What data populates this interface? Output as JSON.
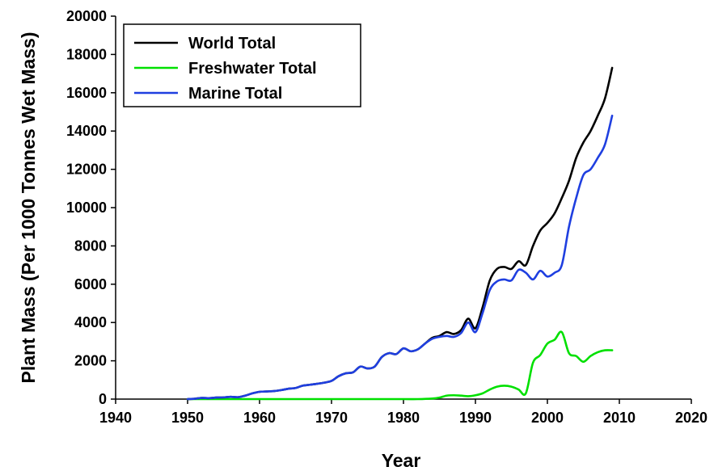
{
  "chart_data": {
    "type": "line",
    "title": "",
    "xlabel": "Year",
    "ylabel": "Plant Mass (Per 1000 Tonnes Wet Mass)",
    "xlim": [
      1940,
      2020
    ],
    "ylim": [
      0,
      20000
    ],
    "xticks": [
      1940,
      1950,
      1960,
      1970,
      1980,
      1990,
      2000,
      2010,
      2020
    ],
    "yticks": [
      0,
      2000,
      4000,
      6000,
      8000,
      10000,
      12000,
      14000,
      16000,
      18000,
      20000
    ],
    "grid": false,
    "legend_position": "top-left",
    "series": [
      {
        "name": "World Total",
        "color": "#000000",
        "x": [
          1950,
          1951,
          1952,
          1953,
          1954,
          1955,
          1956,
          1957,
          1958,
          1959,
          1960,
          1961,
          1962,
          1963,
          1964,
          1965,
          1966,
          1967,
          1968,
          1969,
          1970,
          1971,
          1972,
          1973,
          1974,
          1975,
          1976,
          1977,
          1978,
          1979,
          1980,
          1981,
          1982,
          1983,
          1984,
          1985,
          1986,
          1987,
          1988,
          1989,
          1990,
          1991,
          1992,
          1993,
          1994,
          1995,
          1996,
          1997,
          1998,
          1999,
          2000,
          2001,
          2002,
          2003,
          2004,
          2005,
          2006,
          2007,
          2008,
          2009
        ],
        "y": [
          0,
          20,
          60,
          50,
          80,
          90,
          120,
          100,
          180,
          300,
          380,
          400,
          420,
          470,
          540,
          580,
          700,
          750,
          800,
          860,
          950,
          1200,
          1350,
          1400,
          1700,
          1600,
          1700,
          2200,
          2400,
          2350,
          2650,
          2500,
          2600,
          2900,
          3200,
          3300,
          3500,
          3400,
          3600,
          4200,
          3700,
          4800,
          6200,
          6800,
          6900,
          6800,
          7200,
          7000,
          8000,
          8800,
          9200,
          9700,
          10500,
          11400,
          12600,
          13400,
          14000,
          14800,
          15700,
          17300
        ]
      },
      {
        "name": "Freshwater Total",
        "color": "#00e000",
        "x": [
          1950,
          1955,
          1960,
          1965,
          1970,
          1975,
          1980,
          1982,
          1984,
          1985,
          1986,
          1987,
          1988,
          1989,
          1990,
          1991,
          1992,
          1993,
          1994,
          1995,
          1996,
          1997,
          1998,
          1999,
          2000,
          2001,
          2002,
          2003,
          2004,
          2005,
          2006,
          2007,
          2008,
          2009
        ],
        "y": [
          0,
          0,
          0,
          0,
          0,
          0,
          0,
          0,
          30,
          80,
          180,
          200,
          180,
          150,
          200,
          300,
          500,
          650,
          700,
          650,
          500,
          300,
          1900,
          2300,
          2900,
          3100,
          3500,
          2400,
          2250,
          1950,
          2250,
          2450,
          2550,
          2550
        ]
      },
      {
        "name": "Marine Total",
        "color": "#1f3fe0",
        "x": [
          1950,
          1951,
          1952,
          1953,
          1954,
          1955,
          1956,
          1957,
          1958,
          1959,
          1960,
          1961,
          1962,
          1963,
          1964,
          1965,
          1966,
          1967,
          1968,
          1969,
          1970,
          1971,
          1972,
          1973,
          1974,
          1975,
          1976,
          1977,
          1978,
          1979,
          1980,
          1981,
          1982,
          1983,
          1984,
          1985,
          1986,
          1987,
          1988,
          1989,
          1990,
          1991,
          1992,
          1993,
          1994,
          1995,
          1996,
          1997,
          1998,
          1999,
          2000,
          2001,
          2002,
          2003,
          2004,
          2005,
          2006,
          2007,
          2008,
          2009
        ],
        "y": [
          0,
          20,
          60,
          50,
          80,
          90,
          120,
          100,
          180,
          300,
          380,
          400,
          420,
          470,
          540,
          580,
          700,
          750,
          800,
          860,
          950,
          1200,
          1350,
          1400,
          1700,
          1600,
          1700,
          2200,
          2400,
          2350,
          2650,
          2500,
          2600,
          2900,
          3150,
          3250,
          3300,
          3250,
          3450,
          4000,
          3500,
          4500,
          5700,
          6150,
          6250,
          6200,
          6750,
          6600,
          6250,
          6700,
          6400,
          6600,
          7000,
          9000,
          10500,
          11700,
          12000,
          12600,
          13300,
          14800
        ]
      }
    ]
  }
}
